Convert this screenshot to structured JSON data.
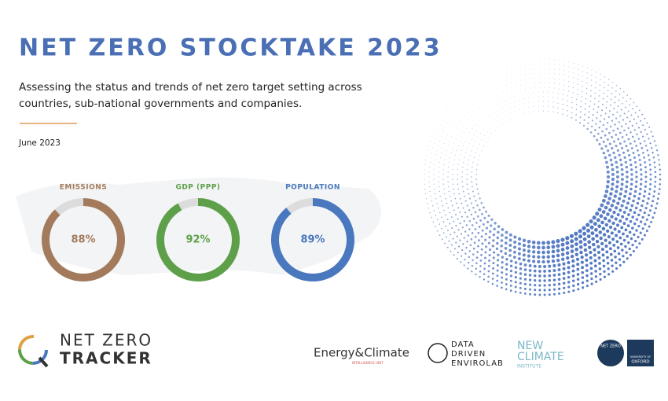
{
  "header": {
    "title": "NET ZERO STOCKTAKE 2023",
    "subtitle_lines": [
      "Assessing the status and trends of net zero target setting across",
      "countries, sub-national governments and companies."
    ],
    "date": "June 2023"
  },
  "chart_data": [
    {
      "type": "donut",
      "title": "EMISSIONS",
      "values": [
        88
      ],
      "value_labels": [
        "88%"
      ],
      "color": "#a37b5c",
      "ylim": [
        0,
        100
      ]
    },
    {
      "type": "donut",
      "title": "GDP (PPP)",
      "values": [
        92
      ],
      "value_labels": [
        "92%"
      ],
      "color": "#5ea04a",
      "ylim": [
        0,
        100
      ]
    },
    {
      "type": "donut",
      "title": "POPULATION",
      "values": [
        89
      ],
      "value_labels": [
        "89%"
      ],
      "color": "#4a78bf",
      "ylim": [
        0,
        100
      ]
    }
  ],
  "logos": {
    "tracker": [
      "NET ZERO",
      "TRACKER"
    ],
    "eciu": [
      "Energy&Climate",
      "INTELLIGENCE UNIT"
    ],
    "envirolab": [
      "DATA",
      "DRIVEN",
      "ENVIROLAB"
    ],
    "newclimate": [
      "NEW",
      "CLIMATE",
      "INSTITUTE"
    ],
    "oxford": [
      "NET ZERO",
      "UNIVERSITY OF",
      "OXFORD"
    ]
  }
}
